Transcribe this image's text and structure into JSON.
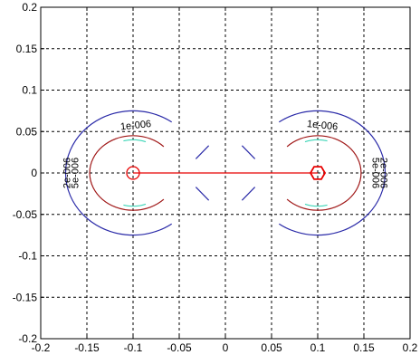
{
  "chart_data": {
    "type": "contour",
    "xlim": [
      -0.2,
      0.2
    ],
    "ylim": [
      -0.2,
      0.2
    ],
    "x_ticks": [
      -0.2,
      -0.15,
      -0.1,
      -0.05,
      0,
      0.05,
      0.1,
      0.15,
      0.2
    ],
    "y_ticks": [
      0.2,
      0.15,
      0.1,
      0.05,
      0,
      -0.05,
      -0.1,
      -0.15,
      -0.2
    ],
    "x_tick_labels": [
      "-0.2",
      "-0.15",
      "-0.1",
      "-0.05",
      "0",
      "0.05",
      "0.1",
      "0.15",
      "0.2"
    ],
    "y_tick_labels": [
      "0.2",
      "0.15",
      "0.1",
      "0.05",
      "0",
      "-0.05",
      "-0.1",
      "-0.15",
      "-0.2"
    ],
    "grid": true,
    "grid_style": "dashed",
    "colors": {
      "outer": "#2a2aa8",
      "middle": "#3fd6b8",
      "inner": "#a01818",
      "segment": "#e80000",
      "grid": "#000000"
    },
    "contour_levels": [
      {
        "name": "outer",
        "label": "1e-006"
      },
      {
        "name": "middle",
        "label": "5e-006"
      },
      {
        "name": "inner",
        "label": "2e-006"
      }
    ],
    "sources": [
      {
        "x": -0.1,
        "y": 0,
        "marker": "circle"
      },
      {
        "x": 0.1,
        "y": 0,
        "marker": "hexagon"
      }
    ],
    "segment": {
      "x1": -0.1,
      "y1": 0,
      "x2": 0.1,
      "y2": 0
    },
    "labels": [
      {
        "text": "1e-006",
        "x": -0.097,
        "y": 0.057,
        "rotate": -6
      },
      {
        "text": "1e-006",
        "x": 0.105,
        "y": 0.057,
        "rotate": 6
      },
      {
        "text": "2e-006",
        "x": -0.171,
        "y": 0.0,
        "rotate": -90
      },
      {
        "text": "5e-006",
        "x": -0.162,
        "y": 0.0,
        "rotate": -90
      },
      {
        "text": "2e-006",
        "x": 0.171,
        "y": 0.0,
        "rotate": 90
      },
      {
        "text": "5e-006",
        "x": 0.162,
        "y": 0.0,
        "rotate": 90
      }
    ]
  }
}
